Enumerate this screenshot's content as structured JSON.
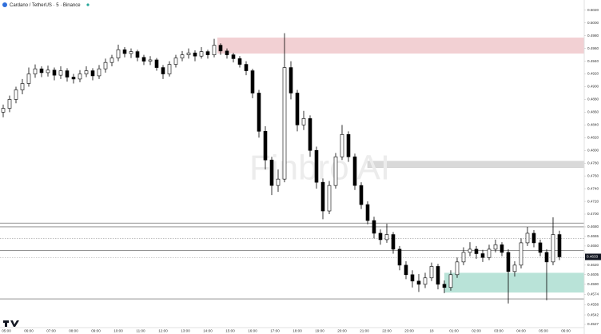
{
  "chart_data": {
    "type": "candlestick",
    "title": "Cardano / TetherUS · 5 · Binance",
    "watermark": "Finbro AI",
    "up_color": "#ffffff",
    "down_color": "#000000",
    "wick_color": "#000000",
    "ylim": [
      0.4522,
      0.5036
    ],
    "yticks": [
      {
        "value": 0.502,
        "label": "0.5020"
      },
      {
        "value": 0.5,
        "label": "0.5000"
      },
      {
        "value": 0.498,
        "label": "0.4980"
      },
      {
        "value": 0.496,
        "label": "0.4960"
      },
      {
        "value": 0.494,
        "label": "0.4940"
      },
      {
        "value": 0.492,
        "label": "0.4920"
      },
      {
        "value": 0.49,
        "label": "0.4900"
      },
      {
        "value": 0.488,
        "label": "0.4880"
      },
      {
        "value": 0.486,
        "label": "0.4860"
      },
      {
        "value": 0.484,
        "label": "0.4840"
      },
      {
        "value": 0.482,
        "label": "0.4820"
      },
      {
        "value": 0.48,
        "label": "0.4800"
      },
      {
        "value": 0.478,
        "label": "0.4780"
      },
      {
        "value": 0.476,
        "label": "0.4760"
      },
      {
        "value": 0.474,
        "label": "0.4740"
      },
      {
        "value": 0.472,
        "label": "0.4720"
      },
      {
        "value": 0.47,
        "label": "0.4700"
      },
      {
        "value": 0.468,
        "label": "0.4680"
      },
      0.4665,
      {
        "value": 0.465,
        "label": "0.4650"
      },
      {
        "value": 0.462,
        "label": "0.4620"
      },
      0.4605,
      {
        "value": 0.459,
        "label": "0.4590"
      },
      0.4574,
      0.4558,
      0.4542,
      0.4527
    ],
    "last_price": 0.4633,
    "x_labels": [
      "05:00",
      "06:00",
      "07:00",
      "08:00",
      "09:00",
      "10:00",
      "11:00",
      "12:00",
      "13:00",
      "14:00",
      "15:00",
      "16:00",
      "17:00",
      "18:00",
      "19:00",
      "20:00",
      "21:00",
      "22:00",
      "23:00",
      "18",
      "01:00",
      "02:00",
      "03:00",
      "04:00",
      "05:00",
      "06:00"
    ],
    "levels": [
      {
        "price": 0.4686,
        "style": "solid"
      },
      {
        "price": 0.468,
        "style": "solid"
      },
      {
        "price": 0.4662,
        "style": "dotted"
      },
      {
        "price": 0.4643,
        "style": "solid"
      },
      {
        "price": 0.4632,
        "style": "dotted"
      },
      {
        "price": 0.4567,
        "style": "solid"
      }
    ],
    "zones": [
      {
        "top": 0.4977,
        "bottom": 0.4952,
        "color": "#f2d0d3"
      },
      {
        "top": 0.4783,
        "bottom": 0.4773,
        "color": "#d9d9d9"
      },
      {
        "top": 0.4608,
        "bottom": 0.4577,
        "color": "#b9e3d8"
      }
    ],
    "ohlc": [
      [
        0.486,
        0.4872,
        0.4852,
        0.4866
      ],
      [
        0.4866,
        0.4886,
        0.486,
        0.488
      ],
      [
        0.488,
        0.49,
        0.4874,
        0.4895
      ],
      [
        0.4895,
        0.4912,
        0.4888,
        0.4905
      ],
      [
        0.4905,
        0.493,
        0.49,
        0.492
      ],
      [
        0.492,
        0.4935,
        0.4914,
        0.4928
      ],
      [
        0.4928,
        0.4932,
        0.4915,
        0.4922
      ],
      [
        0.4922,
        0.4933,
        0.4916,
        0.4926
      ],
      [
        0.4926,
        0.493,
        0.491,
        0.4918
      ],
      [
        0.4918,
        0.4932,
        0.4912,
        0.4925
      ],
      [
        0.4925,
        0.4929,
        0.4908,
        0.4915
      ],
      [
        0.4915,
        0.492,
        0.4905,
        0.4912
      ],
      [
        0.4912,
        0.4926,
        0.4907,
        0.492
      ],
      [
        0.492,
        0.4932,
        0.4915,
        0.4925
      ],
      [
        0.4925,
        0.4929,
        0.491,
        0.4917
      ],
      [
        0.4917,
        0.4934,
        0.4912,
        0.4928
      ],
      [
        0.4928,
        0.4944,
        0.4922,
        0.4938
      ],
      [
        0.4938,
        0.495,
        0.4932,
        0.4945
      ],
      [
        0.4945,
        0.4966,
        0.494,
        0.4958
      ],
      [
        0.4958,
        0.4962,
        0.4946,
        0.4952
      ],
      [
        0.4952,
        0.496,
        0.4945,
        0.4955
      ],
      [
        0.4955,
        0.4958,
        0.494,
        0.4946
      ],
      [
        0.4946,
        0.495,
        0.4934,
        0.494
      ],
      [
        0.494,
        0.4948,
        0.4934,
        0.4942
      ],
      [
        0.4942,
        0.4945,
        0.4925,
        0.493
      ],
      [
        0.493,
        0.4934,
        0.4912,
        0.492
      ],
      [
        0.492,
        0.494,
        0.4916,
        0.4935
      ],
      [
        0.4935,
        0.495,
        0.493,
        0.4945
      ],
      [
        0.4945,
        0.4956,
        0.494,
        0.495
      ],
      [
        0.495,
        0.496,
        0.4944,
        0.4953
      ],
      [
        0.4953,
        0.4957,
        0.494,
        0.4948
      ],
      [
        0.4948,
        0.4962,
        0.4944,
        0.4955
      ],
      [
        0.4955,
        0.4958,
        0.4944,
        0.495
      ],
      [
        0.495,
        0.4975,
        0.4946,
        0.4965
      ],
      [
        0.4965,
        0.4968,
        0.495,
        0.4956
      ],
      [
        0.4956,
        0.496,
        0.4944,
        0.495
      ],
      [
        0.495,
        0.4953,
        0.4938,
        0.4944
      ],
      [
        0.4944,
        0.4948,
        0.493,
        0.4935
      ],
      [
        0.4935,
        0.494,
        0.4918,
        0.4925
      ],
      [
        0.4925,
        0.4928,
        0.4882,
        0.489
      ],
      [
        0.489,
        0.4895,
        0.482,
        0.483
      ],
      [
        0.483,
        0.4838,
        0.477,
        0.4785
      ],
      [
        0.4785,
        0.479,
        0.473,
        0.4745
      ],
      [
        0.4745,
        0.477,
        0.4735,
        0.4755
      ],
      [
        0.4755,
        0.4984,
        0.475,
        0.493
      ],
      [
        0.493,
        0.494,
        0.488,
        0.489
      ],
      [
        0.489,
        0.4895,
        0.483,
        0.484
      ],
      [
        0.484,
        0.4862,
        0.4832,
        0.485
      ],
      [
        0.485,
        0.4855,
        0.479,
        0.48
      ],
      [
        0.48,
        0.4806,
        0.474,
        0.475
      ],
      [
        0.475,
        0.4756,
        0.4692,
        0.4705
      ],
      [
        0.4705,
        0.4752,
        0.47,
        0.4745
      ],
      [
        0.4745,
        0.4796,
        0.474,
        0.479
      ],
      [
        0.479,
        0.484,
        0.4785,
        0.4825
      ],
      [
        0.4825,
        0.483,
        0.4782,
        0.479
      ],
      [
        0.479,
        0.4795,
        0.4738,
        0.4745
      ],
      [
        0.4745,
        0.475,
        0.4708,
        0.4715
      ],
      [
        0.4715,
        0.472,
        0.4684,
        0.469
      ],
      [
        0.469,
        0.4696,
        0.4662,
        0.467
      ],
      [
        0.467,
        0.4676,
        0.4652,
        0.466
      ],
      [
        0.466,
        0.4685,
        0.4655,
        0.4668
      ],
      [
        0.4668,
        0.4672,
        0.4638,
        0.4645
      ],
      [
        0.4645,
        0.465,
        0.4612,
        0.462
      ],
      [
        0.462,
        0.4626,
        0.4598,
        0.4605
      ],
      [
        0.4605,
        0.4612,
        0.4585,
        0.4595
      ],
      [
        0.4595,
        0.4606,
        0.4578,
        0.459
      ],
      [
        0.459,
        0.4608,
        0.4584,
        0.46
      ],
      [
        0.46,
        0.4624,
        0.4595,
        0.4618
      ],
      [
        0.4618,
        0.4622,
        0.4582,
        0.459
      ],
      [
        0.459,
        0.4596,
        0.4576,
        0.4585
      ],
      [
        0.4585,
        0.4612,
        0.458,
        0.4605
      ],
      [
        0.4605,
        0.4632,
        0.46,
        0.4625
      ],
      [
        0.4625,
        0.4648,
        0.462,
        0.464
      ],
      [
        0.464,
        0.4656,
        0.4634,
        0.4645
      ],
      [
        0.4645,
        0.465,
        0.463,
        0.4638
      ],
      [
        0.4638,
        0.4644,
        0.4625,
        0.4632
      ],
      [
        0.4632,
        0.4652,
        0.4628,
        0.4645
      ],
      [
        0.4645,
        0.466,
        0.464,
        0.4652
      ],
      [
        0.4652,
        0.4656,
        0.4634,
        0.464
      ],
      [
        0.464,
        0.4645,
        0.456,
        0.461
      ],
      [
        0.461,
        0.4626,
        0.4602,
        0.462
      ],
      [
        0.462,
        0.4662,
        0.4615,
        0.4655
      ],
      [
        0.4655,
        0.468,
        0.465,
        0.467
      ],
      [
        0.467,
        0.4675,
        0.4648,
        0.4655
      ],
      [
        0.4655,
        0.466,
        0.4634,
        0.464
      ],
      [
        0.464,
        0.4645,
        0.4565,
        0.4625
      ],
      [
        0.4625,
        0.4695,
        0.462,
        0.4668
      ],
      [
        0.4668,
        0.4674,
        0.4628,
        0.4633
      ]
    ]
  }
}
